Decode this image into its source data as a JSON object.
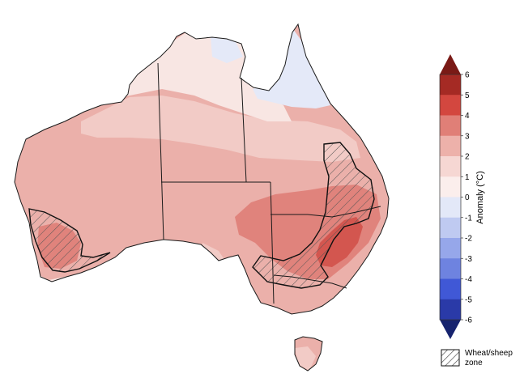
{
  "map": {
    "region": "Australia",
    "palette": {
      "lt_neg1": "#e4e9f8",
      "a0_1": "#f8e6e3",
      "a1_2": "#f2cbc6",
      "a2_3": "#ebb0aa",
      "a3_4": "#e0837c",
      "a4_5": "#d3564f",
      "border": "#1a1a1a",
      "hatch": "#555555"
    }
  },
  "colorbar": {
    "title": "Anomaly (°C)",
    "ticks": [
      "6",
      "5",
      "4",
      "3",
      "2",
      "1",
      "0",
      "-1",
      "-2",
      "-3",
      "-4",
      "-5",
      "-6"
    ],
    "colors": [
      "#a52a24",
      "#d3473f",
      "#e07f77",
      "#edb1aa",
      "#f6d7d3",
      "#fbeeec",
      "#e3e8f8",
      "#bfcaf1",
      "#96a7ea",
      "#6e83e0",
      "#4058d6",
      "#2a3aa8"
    ],
    "top_arrow_color": "#7a1a16",
    "bottom_arrow_color": "#16236e"
  },
  "zone_legend": {
    "label_line1": "Wheat/sheep",
    "label_line2": "zone"
  }
}
